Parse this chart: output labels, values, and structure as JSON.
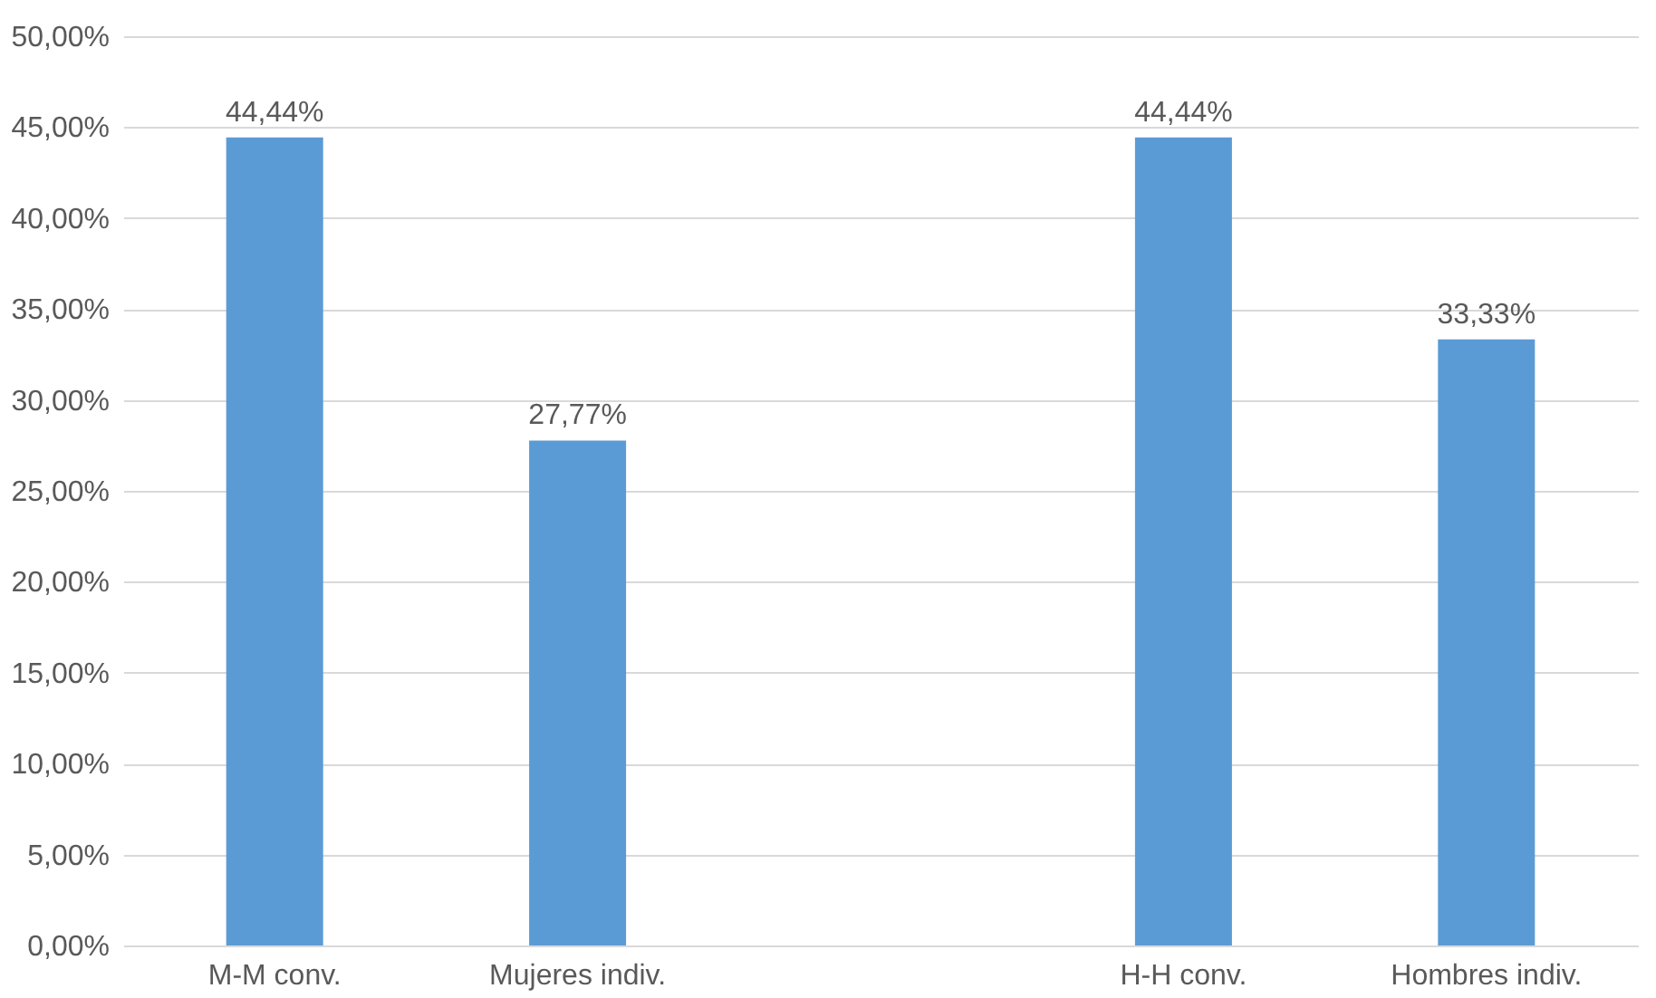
{
  "chart_data": {
    "type": "bar",
    "categories": [
      "M-M conv.",
      "Mujeres indiv.",
      null,
      "H-H conv.",
      "Hombres indiv."
    ],
    "values": [
      44.44,
      27.77,
      null,
      44.44,
      33.33
    ],
    "value_labels": [
      "44,44%",
      "27,77%",
      null,
      "44,44%",
      "33,33%"
    ],
    "color": "#5b9bd5",
    "ylim": [
      0,
      50
    ],
    "yticks": [
      {
        "value": 0,
        "label": "0,00%"
      },
      {
        "value": 5,
        "label": "5,00%"
      },
      {
        "value": 10,
        "label": "10,00%"
      },
      {
        "value": 15,
        "label": "15,00%"
      },
      {
        "value": 20,
        "label": "20,00%"
      },
      {
        "value": 25,
        "label": "25,00%"
      },
      {
        "value": 30,
        "label": "30,00%"
      },
      {
        "value": 35,
        "label": "35,00%"
      },
      {
        "value": 40,
        "label": "40,00%"
      },
      {
        "value": 45,
        "label": "45,00%"
      },
      {
        "value": 50,
        "label": "50,00%"
      }
    ],
    "grid": "y"
  }
}
